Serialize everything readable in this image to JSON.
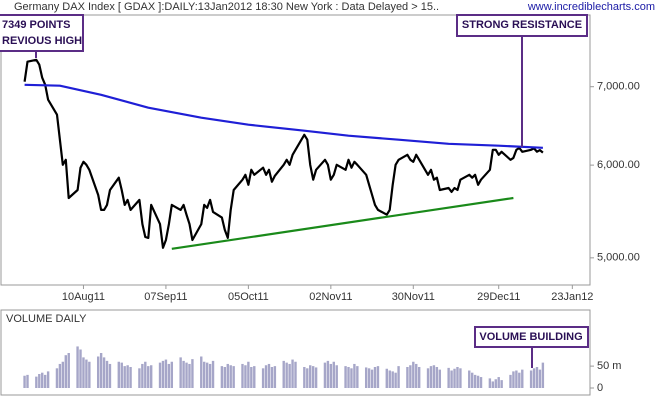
{
  "chart_data": [
    {
      "type": "line",
      "title": "Germany DAX Index [ GDAX ]:DAILY:13Jan2012 18:30 New York : Data Delayed > 15..",
      "source": "www.incrediblecharts.com",
      "log_scale": true,
      "xlim": [
        "2011-07-13",
        "2012-01-29"
      ],
      "xticks": [
        {
          "value": "2011-08-10",
          "label": "10Aug11"
        },
        {
          "value": "2011-09-07",
          "label": "07Sep11"
        },
        {
          "value": "2011-10-05",
          "label": "05Oct11"
        },
        {
          "value": "2011-11-02",
          "label": "02Nov11"
        },
        {
          "value": "2011-11-30",
          "label": "30Nov11"
        },
        {
          "value": "2011-12-29",
          "label": "29Dec11"
        },
        {
          "value": "2012-01-23",
          "label": "23Jan12"
        }
      ],
      "ylim": [
        4740,
        8060
      ],
      "yticks": [
        {
          "value": 5000,
          "label": "5,000.00"
        },
        {
          "value": 6000,
          "label": "6,000.00"
        },
        {
          "value": 7000,
          "label": "7,000.00"
        }
      ],
      "annotations": [
        [
          "7349 POINTS",
          "REVIOUS HIGH"
        ],
        [
          "STRONG RESISTANCE"
        ]
      ],
      "series": [
        {
          "color": "#000000",
          "x": [
            "2011-07-21",
            "2011-07-22",
            "2011-07-25",
            "2011-07-26",
            "2011-07-27",
            "2011-07-28",
            "2011-07-29",
            "2011-08-01",
            "2011-08-02",
            "2011-08-03",
            "2011-08-04",
            "2011-08-05",
            "2011-08-08",
            "2011-08-09",
            "2011-08-10",
            "2011-08-11",
            "2011-08-12",
            "2011-08-15",
            "2011-08-16",
            "2011-08-17",
            "2011-08-18",
            "2011-08-19",
            "2011-08-22",
            "2011-08-23",
            "2011-08-24",
            "2011-08-25",
            "2011-08-26",
            "2011-08-29",
            "2011-08-30",
            "2011-08-31",
            "2011-09-01",
            "2011-09-02",
            "2011-09-05",
            "2011-09-06",
            "2011-09-07",
            "2011-09-08",
            "2011-09-09",
            "2011-09-12",
            "2011-09-13",
            "2011-09-14",
            "2011-09-15",
            "2011-09-16",
            "2011-09-19",
            "2011-09-20",
            "2011-09-21",
            "2011-09-22",
            "2011-09-23",
            "2011-09-26",
            "2011-09-27",
            "2011-09-28",
            "2011-09-29",
            "2011-09-30",
            "2011-10-03",
            "2011-10-04",
            "2011-10-05",
            "2011-10-06",
            "2011-10-07",
            "2011-10-10",
            "2011-10-11",
            "2011-10-12",
            "2011-10-13",
            "2011-10-14",
            "2011-10-17",
            "2011-10-18",
            "2011-10-19",
            "2011-10-20",
            "2011-10-21",
            "2011-10-24",
            "2011-10-25",
            "2011-10-26",
            "2011-10-27",
            "2011-10-28",
            "2011-10-31",
            "2011-11-01",
            "2011-11-02",
            "2011-11-03",
            "2011-11-04",
            "2011-11-07",
            "2011-11-08",
            "2011-11-09",
            "2011-11-10",
            "2011-11-11",
            "2011-11-14",
            "2011-11-15",
            "2011-11-16",
            "2011-11-17",
            "2011-11-18",
            "2011-11-21",
            "2011-11-22",
            "2011-11-23",
            "2011-11-24",
            "2011-11-25",
            "2011-11-28",
            "2011-11-29",
            "2011-11-30",
            "2011-12-01",
            "2011-12-02",
            "2011-12-05",
            "2011-12-06",
            "2011-12-07",
            "2011-12-08",
            "2011-12-09",
            "2011-12-12",
            "2011-12-13",
            "2011-12-14",
            "2011-12-15",
            "2011-12-16",
            "2011-12-19",
            "2011-12-20",
            "2011-12-21",
            "2011-12-22",
            "2011-12-23",
            "2011-12-26",
            "2011-12-27",
            "2011-12-28",
            "2011-12-29",
            "2011-12-30",
            "2012-01-02",
            "2012-01-03",
            "2012-01-04",
            "2012-01-05",
            "2012-01-06",
            "2012-01-09",
            "2012-01-10",
            "2012-01-11",
            "2012-01-12",
            "2012-01-13"
          ],
          "values": [
            7069,
            7353,
            7381,
            7309,
            7125,
            7027,
            6823,
            6625,
            6307,
            6004,
            6063,
            5624,
            5714,
            5970,
            6039,
            6004,
            5945,
            5658,
            5494,
            5494,
            5548,
            5714,
            5853,
            5714,
            5548,
            5603,
            5494,
            5603,
            5343,
            5209,
            5200,
            5548,
            5343,
            5100,
            5179,
            5343,
            5548,
            5494,
            5548,
            5443,
            5343,
            5179,
            5343,
            5548,
            5516,
            5603,
            5473,
            5412,
            5282,
            5200,
            5494,
            5714,
            5830,
            5887,
            5772,
            5945,
            5887,
            5970,
            5887,
            5945,
            5807,
            5875,
            6004,
            6063,
            6004,
            6123,
            6184,
            6369,
            6307,
            6004,
            5830,
            5945,
            6063,
            6004,
            5830,
            5887,
            6004,
            5945,
            6063,
            5970,
            6039,
            6004,
            5887,
            5772,
            5658,
            5548,
            5494,
            5443,
            5494,
            5772,
            6004,
            6063,
            6123,
            6063,
            6039,
            6123,
            6063,
            5887,
            5945,
            5830,
            5853,
            5714,
            5736,
            5692,
            5736,
            5714,
            5830,
            5887,
            5853,
            5887,
            5772,
            5830,
            5945,
            6184,
            6184,
            6123,
            6159,
            6063,
            6086,
            6184,
            6207,
            6159,
            6184,
            6200,
            6160,
            6180,
            6150
          ]
        },
        {
          "color": "#1f1fd6",
          "x": [
            "2011-07-21",
            "2011-08-02",
            "2011-08-16",
            "2011-09-01",
            "2011-09-19",
            "2011-10-05",
            "2011-10-24",
            "2011-11-08",
            "2011-11-25",
            "2011-12-12",
            "2011-12-29",
            "2012-01-13"
          ],
          "values": [
            7027,
            7014,
            6890,
            6717,
            6586,
            6496,
            6420,
            6357,
            6307,
            6257,
            6233,
            6208
          ]
        },
        {
          "color": "#1a8a1a",
          "x": [
            "2011-09-09",
            "2012-01-03"
          ],
          "values": [
            5090,
            5624
          ]
        }
      ]
    },
    {
      "type": "bar",
      "title": "VOLUME DAILY",
      "color": "#a6a6c8",
      "xlim": [
        "2011-07-13",
        "2012-01-29"
      ],
      "ylim": [
        0,
        160
      ],
      "yticks": [
        0,
        {
          "value": 50,
          "label": "50 m"
        }
      ],
      "annotations": [
        [
          "VOLUME BUILDING"
        ]
      ],
      "x": [
        "2011-07-21",
        "2011-07-22",
        "2011-07-25",
        "2011-07-26",
        "2011-07-27",
        "2011-07-28",
        "2011-07-29",
        "2011-08-01",
        "2011-08-02",
        "2011-08-03",
        "2011-08-04",
        "2011-08-05",
        "2011-08-08",
        "2011-08-09",
        "2011-08-10",
        "2011-08-11",
        "2011-08-12",
        "2011-08-15",
        "2011-08-16",
        "2011-08-17",
        "2011-08-18",
        "2011-08-19",
        "2011-08-22",
        "2011-08-23",
        "2011-08-24",
        "2011-08-25",
        "2011-08-26",
        "2011-08-29",
        "2011-08-30",
        "2011-08-31",
        "2011-09-01",
        "2011-09-02",
        "2011-09-05",
        "2011-09-06",
        "2011-09-07",
        "2011-09-08",
        "2011-09-09",
        "2011-09-12",
        "2011-09-13",
        "2011-09-14",
        "2011-09-15",
        "2011-09-16",
        "2011-09-19",
        "2011-09-20",
        "2011-09-21",
        "2011-09-22",
        "2011-09-23",
        "2011-09-26",
        "2011-09-27",
        "2011-09-28",
        "2011-09-29",
        "2011-09-30",
        "2011-10-03",
        "2011-10-04",
        "2011-10-05",
        "2011-10-06",
        "2011-10-07",
        "2011-10-10",
        "2011-10-11",
        "2011-10-12",
        "2011-10-13",
        "2011-10-14",
        "2011-10-17",
        "2011-10-18",
        "2011-10-19",
        "2011-10-20",
        "2011-10-21",
        "2011-10-24",
        "2011-10-25",
        "2011-10-26",
        "2011-10-27",
        "2011-10-28",
        "2011-10-31",
        "2011-11-01",
        "2011-11-02",
        "2011-11-03",
        "2011-11-04",
        "2011-11-07",
        "2011-11-08",
        "2011-11-09",
        "2011-11-10",
        "2011-11-11",
        "2011-11-14",
        "2011-11-15",
        "2011-11-16",
        "2011-11-17",
        "2011-11-18",
        "2011-11-21",
        "2011-11-22",
        "2011-11-23",
        "2011-11-24",
        "2011-11-25",
        "2011-11-28",
        "2011-11-29",
        "2011-11-30",
        "2011-12-01",
        "2011-12-02",
        "2011-12-05",
        "2011-12-06",
        "2011-12-07",
        "2011-12-08",
        "2011-12-09",
        "2011-12-12",
        "2011-12-13",
        "2011-12-14",
        "2011-12-15",
        "2011-12-16",
        "2011-12-19",
        "2011-12-20",
        "2011-12-21",
        "2011-12-22",
        "2011-12-23",
        "2011-12-26",
        "2011-12-27",
        "2011-12-28",
        "2011-12-29",
        "2011-12-30",
        "2012-01-02",
        "2012-01-03",
        "2012-01-04",
        "2012-01-05",
        "2012-01-06",
        "2012-01-09",
        "2012-01-10",
        "2012-01-11",
        "2012-01-12",
        "2012-01-13"
      ],
      "values": [
        28,
        30,
        26,
        32,
        35,
        30,
        38,
        45,
        55,
        60,
        75,
        80,
        95,
        88,
        70,
        65,
        60,
        72,
        80,
        70,
        62,
        55,
        60,
        58,
        50,
        52,
        48,
        45,
        55,
        60,
        50,
        52,
        58,
        62,
        65,
        55,
        60,
        70,
        62,
        58,
        55,
        66,
        72,
        60,
        58,
        55,
        62,
        50,
        48,
        55,
        52,
        50,
        55,
        52,
        60,
        48,
        50,
        45,
        52,
        55,
        48,
        50,
        62,
        58,
        55,
        65,
        60,
        48,
        45,
        52,
        50,
        47,
        58,
        62,
        55,
        60,
        52,
        50,
        48,
        45,
        55,
        50,
        47,
        45,
        42,
        48,
        50,
        44,
        40,
        38,
        35,
        50,
        48,
        52,
        60,
        55,
        48,
        45,
        50,
        52,
        48,
        42,
        46,
        40,
        44,
        48,
        45,
        40,
        35,
        30,
        28,
        25,
        22,
        15,
        20,
        25,
        18,
        30,
        38,
        40,
        35,
        42,
        40,
        45,
        48,
        42,
        58
      ]
    }
  ]
}
